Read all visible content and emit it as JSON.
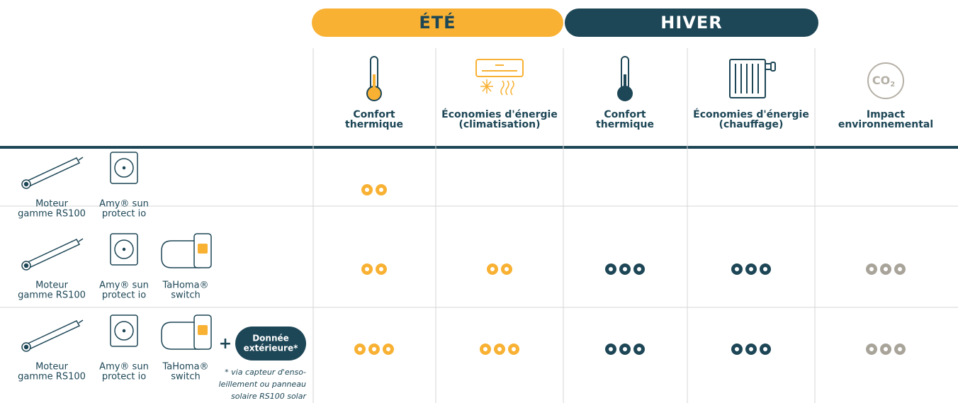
{
  "seasons": [
    {
      "label": "ÉTÉ",
      "color": "#f8b133"
    },
    {
      "label": "HIVER",
      "color": "#1d4656"
    }
  ],
  "columns": [
    {
      "label": [
        "Confort",
        "thermique"
      ],
      "dot_color": "#f8b133"
    },
    {
      "label": [
        "Économies d'énergie",
        "(climatisation)"
      ],
      "dot_color": "#f8b133"
    },
    {
      "label": [
        "Confort",
        "thermique"
      ],
      "dot_color": "#1d4656"
    },
    {
      "label": [
        "Économies d'énergie",
        "(chauffage)"
      ],
      "dot_color": "#1d4656"
    },
    {
      "label": [
        "Impact",
        "environnemental"
      ],
      "dot_color": "#a9a49a",
      "icon_label": [
        "CO",
        "2"
      ]
    }
  ],
  "rows": [
    {
      "devices": [
        {
          "label": [
            "Moteur",
            "gamme RS100"
          ]
        },
        {
          "label": [
            "Amy® sun",
            "protect io"
          ]
        }
      ],
      "ratings": [
        2,
        null,
        null,
        null,
        null
      ]
    },
    {
      "devices": [
        {
          "label": [
            "Moteur",
            "gamme RS100"
          ]
        },
        {
          "label": [
            "Amy® sun",
            "protect io"
          ]
        },
        {
          "label": [
            "TaHoma®",
            "switch"
          ]
        }
      ],
      "ratings": [
        2,
        2,
        3,
        3,
        3
      ]
    },
    {
      "devices": [
        {
          "label": [
            "Moteur",
            "gamme RS100"
          ]
        },
        {
          "label": [
            "Amy® sun",
            "protect io"
          ]
        },
        {
          "label": [
            "TaHoma®",
            "switch"
          ]
        }
      ],
      "extra": {
        "plus": "+",
        "badge": [
          "Donnée",
          "extérieure*"
        ],
        "note": [
          "* via capteur d'enso-",
          "leillement ou panneau",
          "solaire RS100 solar"
        ]
      },
      "ratings": [
        3,
        3,
        3,
        3,
        3
      ]
    }
  ]
}
